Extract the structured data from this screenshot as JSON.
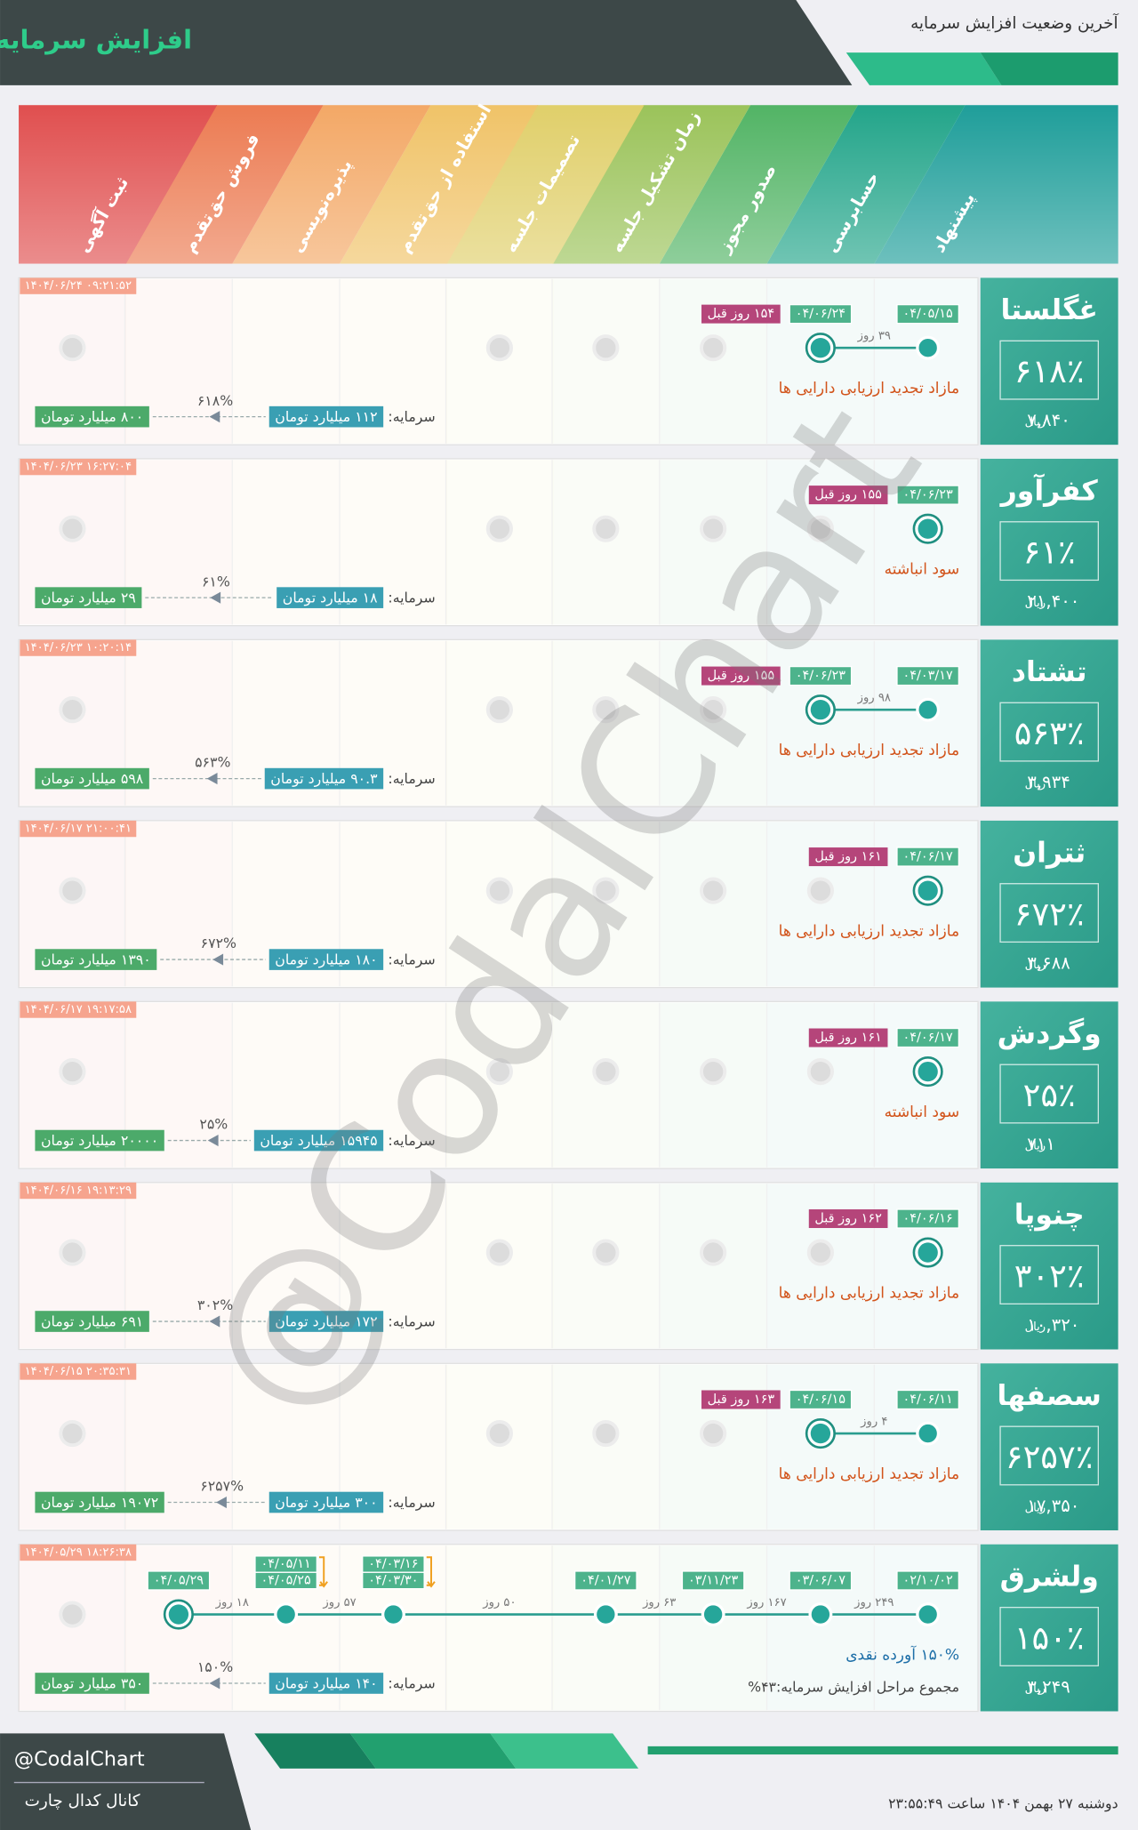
{
  "header": {
    "title": "افزایش سرمایه",
    "subtitle": "آخرین وضعیت افزایش سرمایه"
  },
  "stages": [
    "پیشنهاد",
    "حسابرسی",
    "صدور مجوز",
    "زمان تشکیل جلسه",
    "تصمیمات جلسه",
    "استفاده از حق‌تقدم",
    "پذیره‌نویسی",
    "فروش حق‌تقدم",
    "ثبت آگهی"
  ],
  "price_unit": "ریال",
  "capital_label": "سرمایه:",
  "rows": [
    {
      "symbol": "غگلستا",
      "change": "۶۱۸٪",
      "price": "۷,۸۴۰",
      "timestamp": "۱۴۰۴/۰۶/۲۴ ۰۹:۲۱:۵۲",
      "events": [
        {
          "stage": "پیشنهاد",
          "dates": [
            "۰۴/۰۵/۱۵"
          ]
        },
        {
          "stage": "حسابرسی",
          "dates": [
            "۰۴/۰۶/۲۴"
          ]
        }
      ],
      "gaps": [
        "۳۹ روز"
      ],
      "days_ago": "۱۵۴ روز قبل",
      "reason": "مازاد تجدید ارزیابی دارایی ها",
      "capital_from": "۱۱۲ میلیارد تومان",
      "capital_to": "۸۰۰ میلیارد تومان",
      "capital_change": "۶۱۸%"
    },
    {
      "symbol": "کفرآور",
      "change": "۶۱٪",
      "price": "۲۱,۴۰۰",
      "timestamp": "۱۴۰۴/۰۶/۲۳ ۱۶:۲۷:۰۴",
      "events": [
        {
          "stage": "پیشنهاد",
          "dates": [
            "۰۴/۰۶/۲۳"
          ]
        }
      ],
      "gaps": [],
      "days_ago": "۱۵۵ روز قبل",
      "reason": "سود انباشته",
      "capital_from": "۱۸ میلیارد تومان",
      "capital_to": "۲۹ میلیارد تومان",
      "capital_change": "۶۱%"
    },
    {
      "symbol": "تشتاد",
      "change": "۵۶۳٪",
      "price": "۳,۹۳۴",
      "timestamp": "۱۴۰۴/۰۶/۲۳ ۱۰:۲۰:۱۴",
      "events": [
        {
          "stage": "پیشنهاد",
          "dates": [
            "۰۴/۰۳/۱۷"
          ]
        },
        {
          "stage": "حسابرسی",
          "dates": [
            "۰۴/۰۶/۲۳"
          ]
        }
      ],
      "gaps": [
        "۹۸ روز"
      ],
      "days_ago": "۱۵۵ روز قبل",
      "reason": "مازاد تجدید ارزیابی دارایی ها",
      "capital_from": "۹۰.۳ میلیارد تومان",
      "capital_to": "۵۹۸ میلیارد تومان",
      "capital_change": "۵۶۳%"
    },
    {
      "symbol": "ثتران",
      "change": "۶۷۲٪",
      "price": "۳,۶۸۸",
      "timestamp": "۱۴۰۴/۰۶/۱۷ ۲۱:۰۰:۴۱",
      "events": [
        {
          "stage": "پیشنهاد",
          "dates": [
            "۰۴/۰۶/۱۷"
          ]
        }
      ],
      "gaps": [],
      "days_ago": "۱۶۱ روز قبل",
      "reason": "مازاد تجدید ارزیابی دارایی ها",
      "capital_from": "۱۸۰ میلیارد تومان",
      "capital_to": "۱۳۹۰ میلیارد تومان",
      "capital_change": "۶۷۲%"
    },
    {
      "symbol": "وگردش",
      "change": "۲۵٪",
      "price": "۷۱۱",
      "timestamp": "۱۴۰۴/۰۶/۱۷ ۱۹:۱۷:۵۸",
      "events": [
        {
          "stage": "پیشنهاد",
          "dates": [
            "۰۴/۰۶/۱۷"
          ]
        }
      ],
      "gaps": [],
      "days_ago": "۱۶۱ روز قبل",
      "reason": "سود انباشته",
      "capital_from": "۱۵۹۴۵ میلیارد تومان",
      "capital_to": "۲۰۰۰۰ میلیارد تومان",
      "capital_change": "۲۵%"
    },
    {
      "symbol": "چنوپا",
      "change": "۳۰۲٪",
      "price": "۱۰,۳۲۰",
      "timestamp": "۱۴۰۴/۰۶/۱۶ ۱۹:۱۳:۲۹",
      "events": [
        {
          "stage": "پیشنهاد",
          "dates": [
            "۰۴/۰۶/۱۶"
          ]
        }
      ],
      "gaps": [],
      "days_ago": "۱۶۲ روز قبل",
      "reason": "مازاد تجدید ارزیابی دارایی ها",
      "capital_from": "۱۷۲ میلیارد تومان",
      "capital_to": "۶۹۱ میلیارد تومان",
      "capital_change": "۳۰۲%"
    },
    {
      "symbol": "سصفها",
      "change": "۶۲۵۷٪",
      "price": "۱۷,۳۵۰",
      "timestamp": "۱۴۰۴/۰۶/۱۵ ۲۰:۳۵:۳۱",
      "events": [
        {
          "stage": "پیشنهاد",
          "dates": [
            "۰۴/۰۶/۱۱"
          ]
        },
        {
          "stage": "حسابرسی",
          "dates": [
            "۰۴/۰۶/۱۵"
          ]
        }
      ],
      "gaps": [
        "۴ روز"
      ],
      "days_ago": "۱۶۳ روز قبل",
      "reason": "مازاد تجدید ارزیابی دارایی ها",
      "capital_from": "۳۰۰ میلیارد تومان",
      "capital_to": "۱۹۰۷۲ میلیارد تومان",
      "capital_change": "۶۲۵۷%"
    },
    {
      "symbol": "ولشرق",
      "change": "۱۵۰٪",
      "price": "۳,۲۴۹",
      "timestamp": "۱۴۰۴/۰۵/۲۹ ۱۸:۲۶:۳۸",
      "events": [
        {
          "stage": "پیشنهاد",
          "dates": [
            "۰۲/۱۰/۰۲"
          ]
        },
        {
          "stage": "حسابرسی",
          "dates": [
            "۰۳/۰۶/۰۷"
          ]
        },
        {
          "stage": "صدور مجوز",
          "dates": [
            "۰۳/۱۱/۲۳"
          ]
        },
        {
          "stage": "زمان تشکیل جلسه",
          "dates": [
            "۰۴/۰۱/۲۷"
          ]
        },
        {
          "stage": "استفاده از حق‌تقدم",
          "dates": [
            "۰۴/۰۳/۱۶",
            "۰۴/۰۳/۳۰"
          ]
        },
        {
          "stage": "پذیره‌نویسی",
          "dates": [
            "۰۴/۰۵/۱۱",
            "۰۴/۰۵/۲۵"
          ]
        },
        {
          "stage": "فروش حق‌تقدم",
          "dates": [
            "۰۴/۰۵/۲۹"
          ]
        }
      ],
      "gaps": [
        "۲۴۹ روز",
        "۱۶۷ روز",
        "۶۳ روز",
        "۵۰ روز",
        "۵۷ روز",
        "۱۸ روز"
      ],
      "reason": "۱۵۰% آورده نقدی",
      "total": "مجموع مراحل افزایش سرمایه:۴۳%",
      "capital_from": "۱۴۰ میلیارد تومان",
      "capital_to": "۳۵۰ میلیارد تومان",
      "capital_change": "۱۵۰%"
    }
  ],
  "watermark": "@CodalChart",
  "footer": {
    "handle": "@CodalChart",
    "channel": "کانال کدال چارت",
    "datetime": "دوشنبه ۲۷ بهمن ۱۴۰۴ ساعت ۲۳:۵۵:۴۹"
  }
}
